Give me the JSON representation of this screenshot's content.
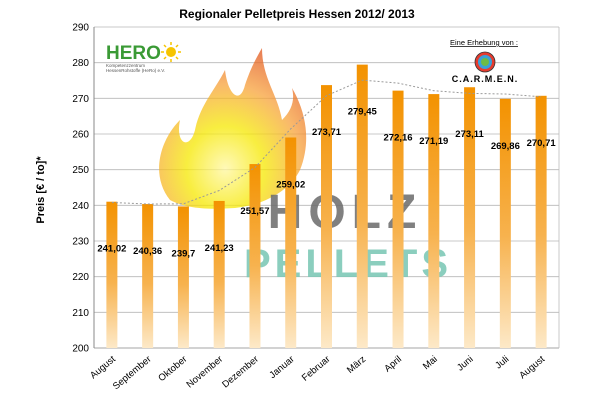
{
  "chart_data": {
    "type": "bar",
    "title": "Regionaler Pelletpreis Hessen 2012/ 2013",
    "xlabel": "",
    "ylabel": "Preis [€ / to]*",
    "ylim": [
      200,
      290
    ],
    "yticks": [
      200,
      210,
      220,
      230,
      240,
      250,
      260,
      270,
      280,
      290
    ],
    "grid": "horizontal",
    "categories": [
      "August",
      "September",
      "Oktober",
      "November",
      "Dezember",
      "Januar",
      "Februar",
      "März",
      "April",
      "Mai",
      "Juni",
      "Juli",
      "August"
    ],
    "values": [
      241.02,
      240.36,
      239.7,
      241.23,
      251.57,
      259.02,
      273.71,
      279.45,
      272.16,
      271.19,
      273.11,
      269.86,
      270.71
    ],
    "data_labels": [
      "241,02",
      "240,36",
      "239,7",
      "241,23",
      "251,57",
      "259,02",
      "273,71",
      "279,45",
      "272,16",
      "271,19",
      "273,11",
      "269,86",
      "270,71"
    ],
    "trendline": "dotted"
  },
  "colors": {
    "bar_top": "#f39200",
    "bar_bottom": "#fde9c8",
    "grid": "#b7b7b7",
    "trend": "#9a9a9a",
    "holz_text": "#6b6b6b",
    "pellets_text": "#7fc9b7",
    "flame_top": "#e35a1f",
    "flame_bottom": "#f6e800",
    "hero_green": "#3a9a35"
  },
  "logos": {
    "hero": {
      "name": "HERO",
      "subtitle_line1": "Kompetenzzentrum",
      "subtitle_line2": "HessenRohstoffe (HeRo) e.V."
    },
    "carmen": {
      "caption": "Eine Erhebung von :",
      "name": "C.A.R.M.E.N."
    },
    "watermark": {
      "line1": "HOLZ",
      "line2": "PELLETS"
    }
  }
}
